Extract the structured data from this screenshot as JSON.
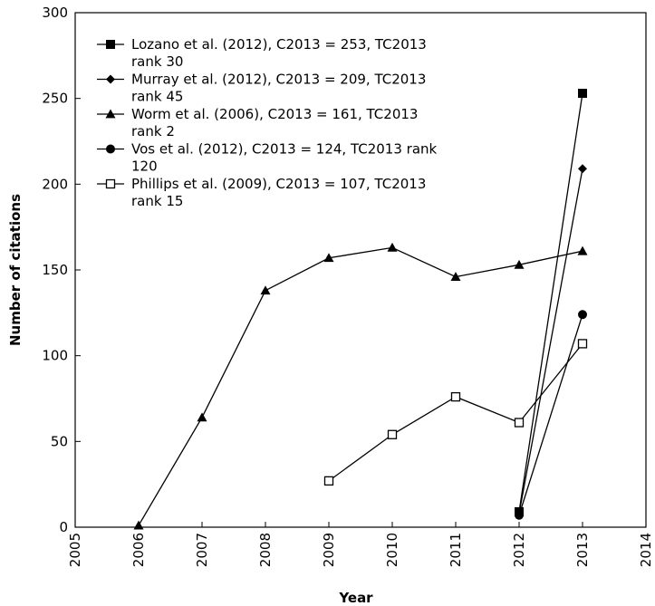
{
  "chart_data": {
    "type": "line",
    "title": "",
    "xlabel": "Year",
    "ylabel": "Number of citations",
    "xlim": [
      2005,
      2014
    ],
    "ylim": [
      0,
      300
    ],
    "x_ticks": [
      "2005",
      "2006",
      "2007",
      "2008",
      "2009",
      "2010",
      "2011",
      "2012",
      "2013",
      "2014"
    ],
    "y_ticks": [
      "0",
      "50",
      "100",
      "150",
      "200",
      "250",
      "300"
    ],
    "grid": false,
    "legend_position": "top-left",
    "series": [
      {
        "name": "Lozano et al. (2012), C2013 = 253, TC2013 rank 30",
        "name_lines": [
          "Lozano et al. (2012), C2013 = 253, TC2013",
          "rank 30"
        ],
        "marker": "square-filled",
        "points": [
          [
            2012,
            9
          ],
          [
            2013,
            253
          ]
        ]
      },
      {
        "name": "Murray et al. (2012), C2013 = 209, TC2013 rank 45",
        "name_lines": [
          "Murray et al. (2012), C2013 = 209, TC2013",
          "rank 45"
        ],
        "marker": "diamond-filled",
        "points": [
          [
            2012,
            8
          ],
          [
            2013,
            209
          ]
        ]
      },
      {
        "name": "Worm et al. (2006), C2013 = 161, TC2013 rank 2",
        "name_lines": [
          "Worm et al. (2006), C2013 = 161, TC2013",
          "rank 2"
        ],
        "marker": "triangle-filled",
        "points": [
          [
            2006,
            1
          ],
          [
            2007,
            64
          ],
          [
            2008,
            138
          ],
          [
            2009,
            157
          ],
          [
            2010,
            163
          ],
          [
            2011,
            146
          ],
          [
            2012,
            153
          ],
          [
            2013,
            161
          ]
        ]
      },
      {
        "name": "Vos et al. (2012), C2013 = 124, TC2013 rank 120",
        "name_lines": [
          "Vos et al. (2012), C2013 = 124, TC2013 rank",
          "120"
        ],
        "marker": "circle-filled",
        "points": [
          [
            2012,
            7
          ],
          [
            2013,
            124
          ]
        ]
      },
      {
        "name": "Phillips et al. (2009), C2013 = 107, TC2013 rank 15",
        "name_lines": [
          "Phillips et al. (2009), C2013 = 107, TC2013",
          "rank 15"
        ],
        "marker": "square-open",
        "points": [
          [
            2009,
            27
          ],
          [
            2010,
            54
          ],
          [
            2011,
            76
          ],
          [
            2012,
            61
          ],
          [
            2013,
            107
          ]
        ]
      }
    ]
  }
}
